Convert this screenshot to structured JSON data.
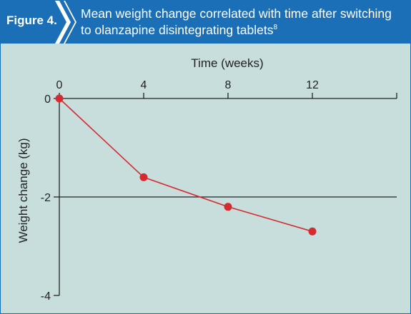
{
  "figure": {
    "label": "Figure 4.",
    "title": "Mean weight change correlated with time after switching to olanzapine disintegrating tablets",
    "title_superscript": "8"
  },
  "colors": {
    "header_bg": "#1a6fb6",
    "plot_bg": "#c8dedd",
    "series": "#d42a30",
    "axis": "#222222"
  },
  "chart_data": {
    "type": "line",
    "xlabel": "Time (weeks)",
    "ylabel": "Weight change (kg)",
    "x_ticks": [
      0,
      4,
      8,
      12
    ],
    "y_ticks": [
      0,
      -2,
      -4
    ],
    "xlim": [
      0,
      16
    ],
    "ylim": [
      -4,
      0
    ],
    "x_axis_position": "top",
    "reference_line_y": -2,
    "series": [
      {
        "x": [
          0,
          4,
          8,
          12
        ],
        "y": [
          0,
          -1.6,
          -2.2,
          -2.7
        ]
      }
    ]
  }
}
